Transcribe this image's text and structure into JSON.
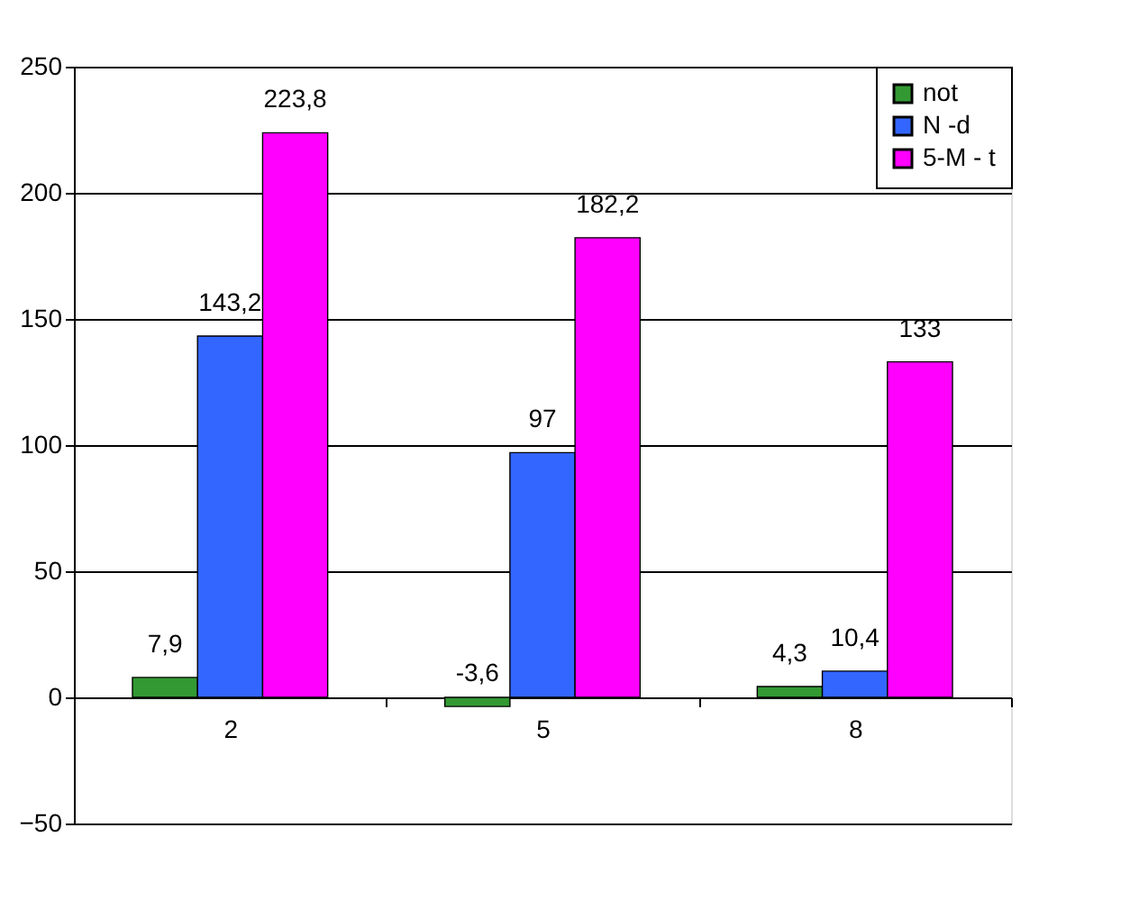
{
  "chart_data": {
    "type": "bar",
    "categories": [
      "2",
      "5",
      "8"
    ],
    "series": [
      {
        "name": "not",
        "color": "#339933",
        "values": [
          7.9,
          -3.6,
          4.3
        ],
        "value_labels": [
          "7,9",
          "-3,6",
          "4,3"
        ]
      },
      {
        "name": "N -d",
        "color": "#3366ff",
        "values": [
          143.2,
          97,
          10.4
        ],
        "value_labels": [
          "143,2",
          "97",
          "10,4"
        ]
      },
      {
        "name": "5-M - t",
        "color": "#ff00ff",
        "values": [
          223.8,
          182.2,
          133
        ],
        "value_labels": [
          "223,8",
          "182,2",
          "133"
        ]
      }
    ],
    "ylim": [
      -50,
      250
    ],
    "yticks": [
      -50,
      0,
      50,
      100,
      150,
      200,
      250
    ],
    "grid": "y",
    "legend": "top right"
  }
}
